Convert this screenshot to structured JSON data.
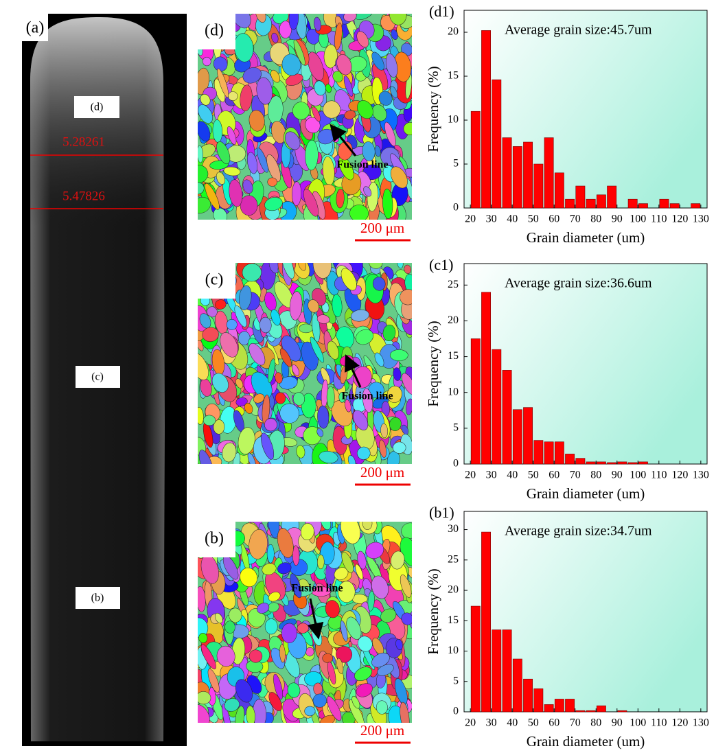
{
  "photo": {
    "label": "(a)",
    "markers": [
      "(d)",
      "(c)",
      "(b)"
    ],
    "measurements": [
      "5.28261",
      "5.47826"
    ]
  },
  "maps": [
    {
      "label": "(d)",
      "annotation": "Fusion line",
      "scale_bar": "200 μm"
    },
    {
      "label": "(c)",
      "annotation": "Fusion line",
      "scale_bar": "200 μm"
    },
    {
      "label": "(b)",
      "annotation": "Fusion line",
      "scale_bar": "200 μm"
    }
  ],
  "chart_data": [
    {
      "type": "histogram",
      "title": "(d1)",
      "annotation": "Average grain size:45.7um",
      "x_label": "Grain diameter (um)",
      "y_label": "Frequency (%)",
      "bins": [
        20,
        25,
        30,
        35,
        40,
        45,
        50,
        55,
        60,
        65,
        70,
        75,
        80,
        85,
        90,
        95,
        100,
        105,
        110,
        115,
        120,
        125,
        130
      ],
      "values": [
        11,
        20.2,
        14.6,
        8,
        7,
        7.5,
        5,
        8,
        4,
        1,
        2.5,
        1,
        1.5,
        2.5,
        0,
        1,
        0.5,
        0,
        1,
        0.5,
        0,
        0.5
      ],
      "color": "#ff0000",
      "xlim": [
        17,
        133
      ],
      "ylim": [
        0,
        22.5
      ],
      "xticks": [
        20,
        30,
        40,
        50,
        60,
        70,
        80,
        90,
        100,
        110,
        120,
        130
      ],
      "yticks": [
        0,
        5,
        10,
        15,
        20
      ]
    },
    {
      "type": "histogram",
      "title": "(c1)",
      "annotation": "Average grain size:36.6um",
      "x_label": "Grain diameter (um)",
      "y_label": "Frequency (%)",
      "bins": [
        20,
        25,
        30,
        35,
        40,
        45,
        50,
        55,
        60,
        65,
        70,
        75,
        80,
        85,
        90,
        95,
        100,
        105,
        110,
        115,
        120,
        125,
        130
      ],
      "values": [
        17.5,
        24,
        16,
        13.1,
        7.6,
        7.9,
        3.3,
        3.1,
        3.1,
        1.4,
        0.8,
        0.3,
        0.3,
        0.2,
        0.3,
        0.2,
        0.3,
        0,
        0,
        0,
        0,
        0
      ],
      "color": "#ff0000",
      "xlim": [
        17,
        133
      ],
      "ylim": [
        0,
        28
      ],
      "xticks": [
        20,
        30,
        40,
        50,
        60,
        70,
        80,
        90,
        100,
        110,
        120,
        130
      ],
      "yticks": [
        0,
        5,
        10,
        15,
        20,
        25
      ]
    },
    {
      "type": "histogram",
      "title": "(b1)",
      "annotation": "Average grain size:34.7um",
      "x_label": "Grain diameter (um)",
      "y_label": "Frequency (%)",
      "bins": [
        20,
        25,
        30,
        35,
        40,
        45,
        50,
        55,
        60,
        65,
        70,
        75,
        80,
        85,
        90,
        95,
        100,
        105,
        110,
        115,
        120,
        125,
        130
      ],
      "values": [
        17.4,
        29.6,
        13.5,
        13.5,
        8.7,
        5.4,
        3.8,
        1.2,
        2.1,
        2.1,
        0.2,
        0.2,
        1,
        0,
        0.2,
        0,
        0,
        0,
        0,
        0,
        0,
        0
      ],
      "color": "#ff0000",
      "xlim": [
        17,
        133
      ],
      "ylim": [
        0,
        33
      ],
      "xticks": [
        20,
        30,
        40,
        50,
        60,
        70,
        80,
        90,
        100,
        110,
        120,
        130
      ],
      "yticks": [
        0,
        5,
        10,
        15,
        20,
        25,
        30
      ]
    }
  ]
}
